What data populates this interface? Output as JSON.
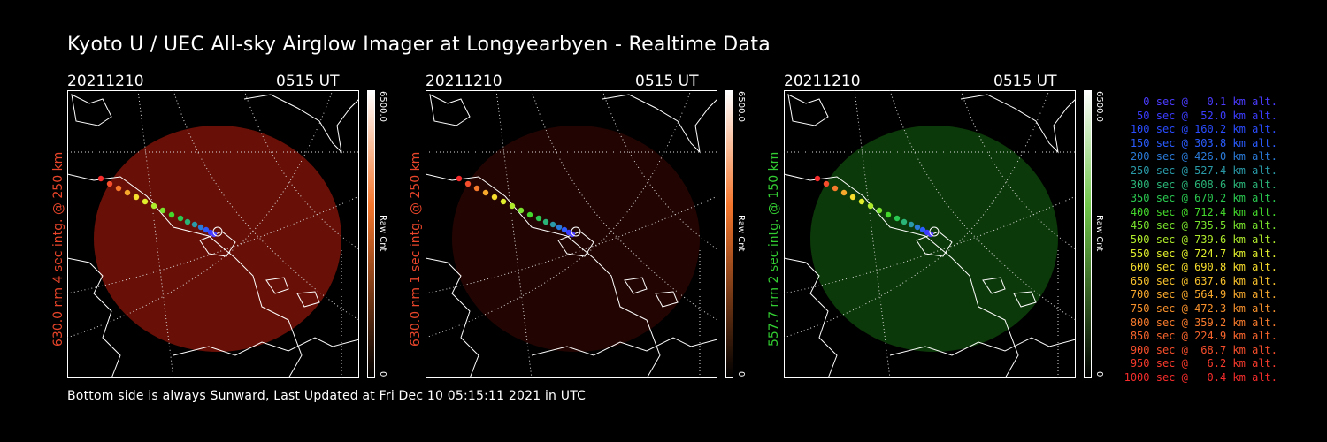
{
  "title": "Kyoto U / UEC All-sky Airglow Imager at Longyearbyen - Realtime Data",
  "footer": "Bottom side is always Sunward, Last Updated at Fri Dec 10 05:15:11 2021 in UTC",
  "panels": [
    {
      "date": "20211210",
      "time": "0515 UT",
      "ylabel": "630.0 nm 4 sec intg. @ 250 km",
      "label_color": "#e8452a",
      "cbar_max": "6500.0",
      "cbar_unit": "Raw Cnt",
      "cbar_min": "0",
      "glow_color": "#7a1308",
      "glow_opacity": 0.85,
      "cbar_top": "#ffffff",
      "cbar_mid": "#f4762d",
      "cbar_bottom": "#000000"
    },
    {
      "date": "20211210",
      "time": "0515 UT",
      "ylabel": "630.0 nm 1 sec intg. @ 250 km",
      "label_color": "#e8452a",
      "cbar_max": "6500.0",
      "cbar_unit": "Raw Cnt",
      "cbar_min": "0",
      "glow_color": "#2a0603",
      "glow_opacity": 0.8,
      "cbar_top": "#ffffff",
      "cbar_mid": "#f4762d",
      "cbar_bottom": "#000000"
    },
    {
      "date": "20211210",
      "time": "0515 UT",
      "ylabel": "557.7 nm 2 sec intg. @ 150 km",
      "label_color": "#32cd32",
      "cbar_max": "6500.0",
      "cbar_unit": "Raw Cnt",
      "cbar_min": "0",
      "glow_color": "#0d3f0a",
      "glow_opacity": 0.9,
      "cbar_top": "#ffffff",
      "cbar_mid": "#6fc64a",
      "cbar_bottom": "#000000"
    }
  ],
  "legend": [
    {
      "text": "   0 sec @   0.1 km alt.",
      "color": "#4b3cff"
    },
    {
      "text": "  50 sec @  52.0 km alt.",
      "color": "#3b3cff"
    },
    {
      "text": " 100 sec @ 160.2 km alt.",
      "color": "#2a4cff"
    },
    {
      "text": " 150 sec @ 303.8 km alt.",
      "color": "#2a5cff"
    },
    {
      "text": " 200 sec @ 426.0 km alt.",
      "color": "#2a7ad8"
    },
    {
      "text": " 250 sec @ 527.4 km alt.",
      "color": "#2a9aa8"
    },
    {
      "text": " 300 sec @ 608.6 km alt.",
      "color": "#2ab478"
    },
    {
      "text": " 350 sec @ 670.2 km alt.",
      "color": "#2ac850"
    },
    {
      "text": " 400 sec @ 712.4 km alt.",
      "color": "#44d82c"
    },
    {
      "text": " 450 sec @ 735.5 km alt.",
      "color": "#78e22c"
    },
    {
      "text": " 500 sec @ 739.6 km alt.",
      "color": "#aeea2c"
    },
    {
      "text": " 550 sec @ 724.7 km alt.",
      "color": "#e0ee2c"
    },
    {
      "text": " 600 sec @ 690.8 km alt.",
      "color": "#f6dc2c"
    },
    {
      "text": " 650 sec @ 637.6 km alt.",
      "color": "#f6c02c"
    },
    {
      "text": " 700 sec @ 564.9 km alt.",
      "color": "#f6a82c"
    },
    {
      "text": " 750 sec @ 472.3 km alt.",
      "color": "#f6902c"
    },
    {
      "text": " 800 sec @ 359.2 km alt.",
      "color": "#f67a2c"
    },
    {
      "text": " 850 sec @ 224.9 km alt.",
      "color": "#f6642c"
    },
    {
      "text": " 900 sec @  68.7 km alt.",
      "color": "#f64e2c"
    },
    {
      "text": " 950 sec @   6.2 km alt.",
      "color": "#f63a2c"
    },
    {
      "text": "1000 sec @   0.4 km alt.",
      "color": "#f62c2c"
    }
  ]
}
